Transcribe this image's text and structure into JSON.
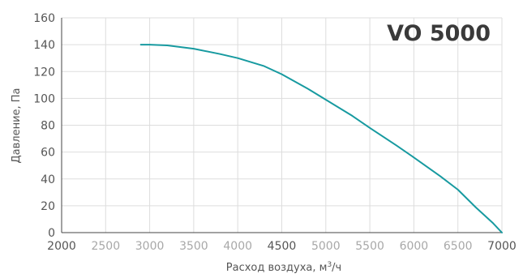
{
  "chart_data": {
    "type": "line",
    "title": "VO 5000",
    "xlabel_prefix": "Расход воздуха, м",
    "xlabel_superscript": "3",
    "xlabel_suffix": "/ч",
    "ylabel": "Давление, Па",
    "xlim": [
      2000,
      7000
    ],
    "ylim": [
      0,
      160
    ],
    "x_ticks": [
      "2000",
      "2500",
      "3000",
      "3500",
      "4000",
      "4500",
      "5000",
      "5500",
      "6000",
      "6500",
      "7000"
    ],
    "x_ticks_emphasized": [
      "2000",
      "4500",
      "7000"
    ],
    "y_ticks": [
      "0",
      "20",
      "40",
      "60",
      "80",
      "100",
      "120",
      "140",
      "160"
    ],
    "grid": true,
    "colors": {
      "line": "#179aa0",
      "grid": "#dddddd",
      "axis": "#444444"
    },
    "series": [
      {
        "x": [
          2900,
          3000,
          3200,
          3500,
          3800,
          4000,
          4300,
          4500,
          4800,
          5000,
          5300,
          5500,
          5800,
          6000,
          6300,
          6500,
          6700,
          6900,
          7000
        ],
        "y": [
          140,
          140,
          139.5,
          137,
          133,
          130,
          124,
          118,
          107,
          99,
          87,
          78,
          65,
          56,
          42,
          32,
          19,
          7,
          0
        ]
      }
    ]
  }
}
